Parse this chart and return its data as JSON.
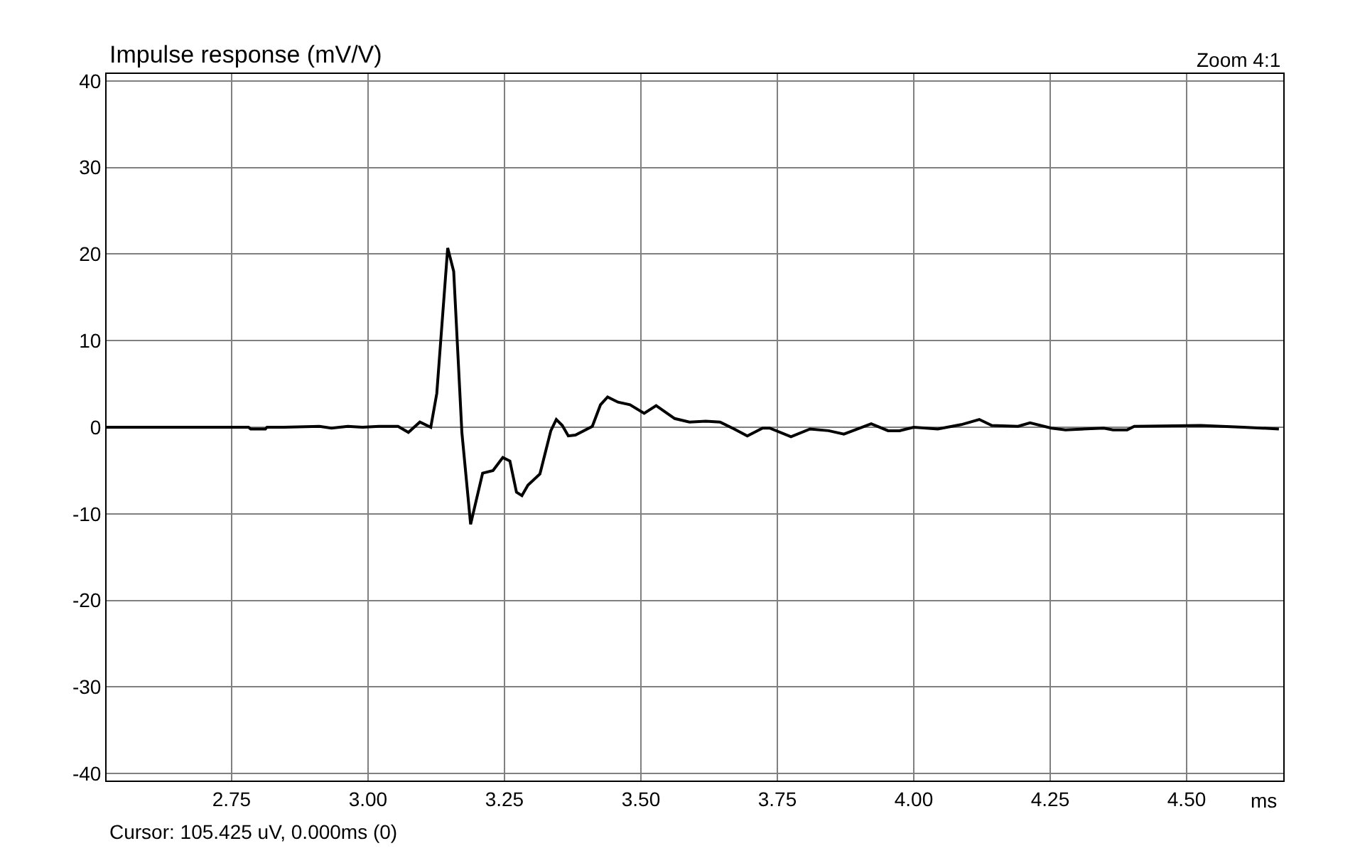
{
  "chart_data": {
    "type": "line",
    "title": "Impulse response (mV/V)",
    "xlabel": "ms",
    "annotations": [
      "Zoom 4:1",
      "Cursor: 105.425 uV, 0.000ms (0)"
    ],
    "x": [
      2.521,
      2.7,
      2.781,
      2.785,
      2.812,
      2.815,
      2.846,
      2.911,
      2.933,
      2.963,
      2.99,
      3.02,
      3.055,
      3.074,
      3.095,
      3.115,
      3.126,
      3.146,
      3.157,
      3.172,
      3.188,
      3.21,
      3.229,
      3.247,
      3.26,
      3.272,
      3.282,
      3.293,
      3.315,
      3.335,
      3.345,
      3.356,
      3.367,
      3.38,
      3.411,
      3.426,
      3.439,
      3.458,
      3.48,
      3.506,
      3.528,
      3.562,
      3.589,
      3.619,
      3.645,
      3.671,
      3.695,
      3.723,
      3.736,
      3.775,
      3.81,
      3.844,
      3.872,
      3.922,
      3.953,
      3.974,
      4.0,
      4.044,
      4.087,
      4.12,
      4.143,
      4.191,
      4.213,
      4.252,
      4.278,
      4.348,
      4.365,
      4.391,
      4.404,
      4.526,
      4.604,
      4.669
    ],
    "series": [
      {
        "color": "#000000",
        "values": [
          0,
          0,
          0,
          -0.2,
          -0.2,
          0,
          0,
          0.1,
          -0.1,
          0.1,
          0,
          0.1,
          0.1,
          -0.6,
          0.6,
          0,
          3.9,
          20.7,
          18,
          -0.6,
          -11.2,
          -5.3,
          -5.0,
          -3.5,
          -3.9,
          -7.5,
          -7.9,
          -6.7,
          -5.4,
          -0.4,
          0.9,
          0.2,
          -1.0,
          -0.9,
          0.1,
          2.6,
          3.5,
          2.9,
          2.6,
          1.6,
          2.5,
          1.0,
          0.6,
          0.7,
          0.6,
          -0.2,
          -1.0,
          -0.1,
          -0.1,
          -1.1,
          -0.2,
          -0.4,
          -0.8,
          0.4,
          -0.4,
          -0.4,
          0,
          -0.2,
          0.3,
          0.9,
          0.2,
          0.1,
          0.5,
          -0.1,
          -0.3,
          -0.1,
          -0.3,
          -0.3,
          0.1,
          0.2,
          0,
          -0.2
        ]
      }
    ],
    "xlim": [
      2.521,
      4.677
    ],
    "xticks": [
      2.75,
      {
        "value": 3,
        "label": "3.00"
      },
      3.25,
      {
        "value": 3.5,
        "label": "3.50"
      },
      3.75,
      {
        "value": 4,
        "label": "4.00"
      },
      4.25,
      {
        "value": 4.5,
        "label": "4.50"
      }
    ],
    "ylim": [
      -40.8,
      40.8
    ],
    "yticks": [
      -40,
      -30,
      -20,
      -10,
      0,
      10,
      20,
      30,
      40
    ],
    "grid": true,
    "marker": "none",
    "line_style": "solid"
  }
}
